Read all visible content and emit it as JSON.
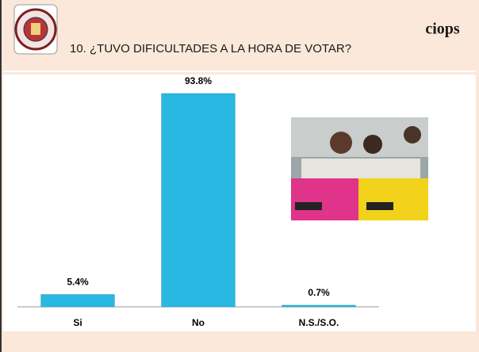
{
  "brand": "ciops",
  "chart_data": {
    "type": "bar",
    "title": "10. ¿TUVO DIFICULTADES A LA HORA DE VOTAR?",
    "categories": [
      "Si",
      "No",
      "N.S./S.O."
    ],
    "values": [
      5.4,
      93.8,
      0.7
    ],
    "value_labels": [
      "5.4%",
      "93.8%",
      "0.7%"
    ],
    "color": "#29b8e2"
  }
}
